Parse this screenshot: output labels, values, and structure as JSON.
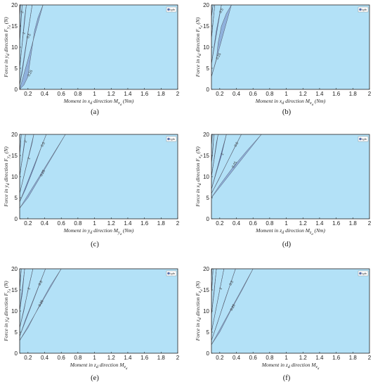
{
  "colors": {
    "background_fill": "#b3e1f7",
    "levels": [
      "#8fb1dc",
      "#6d8fd2",
      "#4f6bc7",
      "#3147a6",
      "#2d8fd6",
      "#52c6d6",
      "#9ee08a",
      "#e9e04a",
      "#f2a23a",
      "#d9362b"
    ]
  },
  "chart_data": [
    {
      "type": "contour",
      "panel": "a",
      "caption": "(a)",
      "xlabel": "Moment in x_d direction M_x_d (Nm)",
      "ylabel": "Force in y_d direction F_y_d (N)",
      "xlim": [
        0.1,
        2
      ],
      "ylim": [
        0,
        20
      ],
      "xticks": [
        0.2,
        0.4,
        0.6,
        0.8,
        1,
        1.2,
        1.4,
        1.6,
        1.8,
        2
      ],
      "yticks": [
        0,
        5,
        10,
        15,
        20
      ],
      "legend": "lgfb",
      "contour_levels": [
        0.25,
        0.5,
        1,
        2
      ],
      "contour_labels": [
        "0.25",
        "0.5",
        "1",
        "2"
      ],
      "boundaries": [
        {
          "level": 0.25,
          "points": [
            [
              0.1,
              0
            ],
            [
              0.15,
              1
            ],
            [
              0.2,
              3
            ],
            [
              0.22,
              6
            ],
            [
              0.25,
              10
            ],
            [
              0.28,
              14
            ],
            [
              0.32,
              17
            ],
            [
              0.38,
              20
            ]
          ]
        },
        {
          "level": 0.5,
          "points": [
            [
              0.1,
              1
            ],
            [
              0.13,
              4
            ],
            [
              0.16,
              8
            ],
            [
              0.19,
              12
            ],
            [
              0.22,
              16
            ],
            [
              0.25,
              20
            ]
          ]
        },
        {
          "level": 1,
          "points": [
            [
              0.1,
              5
            ],
            [
              0.12,
              9
            ],
            [
              0.14,
              13
            ],
            [
              0.16,
              17
            ],
            [
              0.18,
              20
            ]
          ]
        },
        {
          "level": 2,
          "points": [
            [
              0.1,
              11
            ],
            [
              0.11,
              15
            ],
            [
              0.12,
              18
            ],
            [
              0.13,
              20
            ]
          ]
        },
        {
          "level": 4,
          "points": [
            [
              0.1,
              17
            ],
            [
              0.105,
              19
            ],
            [
              0.11,
              20
            ]
          ]
        }
      ]
    },
    {
      "type": "contour",
      "panel": "b",
      "caption": "(b)",
      "xlabel": "Moment in x_d direction M_x_d (Nm)",
      "ylabel": "Force in z_d direction F_z_d (N)",
      "xlim": [
        0.1,
        2
      ],
      "ylim": [
        0,
        20
      ],
      "xticks": [
        0.2,
        0.4,
        0.6,
        0.8,
        1,
        1.2,
        1.4,
        1.6,
        1.8,
        2
      ],
      "yticks": [
        0,
        5,
        10,
        15,
        20
      ],
      "legend": "lgfb",
      "contour_levels": [
        0.25,
        0.5
      ],
      "contour_labels": [
        "0.25",
        "0.5"
      ],
      "boundaries": [
        {
          "level": 0.25,
          "points": [
            [
              0.1,
              3
            ],
            [
              0.13,
              5
            ],
            [
              0.16,
              7
            ],
            [
              0.18,
              11
            ],
            [
              0.22,
              15
            ],
            [
              0.28,
              18
            ],
            [
              0.34,
              20
            ]
          ]
        },
        {
          "level": 0.5,
          "points": [
            [
              0.1,
              6
            ],
            [
              0.13,
              10
            ],
            [
              0.16,
              14
            ],
            [
              0.2,
              18
            ],
            [
              0.22,
              20
            ]
          ]
        },
        {
          "level": 1,
          "points": [
            [
              0.1,
              12
            ],
            [
              0.12,
              16
            ],
            [
              0.14,
              20
            ]
          ]
        },
        {
          "level": 2,
          "points": [
            [
              0.1,
              17
            ],
            [
              0.11,
              19
            ],
            [
              0.12,
              20
            ]
          ]
        }
      ]
    },
    {
      "type": "contour",
      "panel": "c",
      "caption": "(c)",
      "xlabel": "Moment in y_d direction M_y_d (Nm)",
      "ylabel": "Force in y_d direction F_y_d (N)",
      "xlim": [
        0.1,
        2
      ],
      "ylim": [
        0,
        20
      ],
      "xticks": [
        0.2,
        0.4,
        0.6,
        0.8,
        1,
        1.2,
        1.4,
        1.6,
        1.8,
        2
      ],
      "yticks": [
        0,
        5,
        10,
        15,
        20
      ],
      "legend": "lgfb",
      "contour_levels": [
        0.25,
        0.5,
        1,
        2
      ],
      "contour_labels": [
        "0.25",
        "0.5",
        "1",
        "2"
      ],
      "boundaries": [
        {
          "level": 0.25,
          "points": [
            [
              0.1,
              2.5
            ],
            [
              0.2,
              5
            ],
            [
              0.35,
              10
            ],
            [
              0.5,
              15
            ],
            [
              0.65,
              20
            ]
          ]
        },
        {
          "level": 0.5,
          "points": [
            [
              0.1,
              4
            ],
            [
              0.17,
              7
            ],
            [
              0.27,
              12
            ],
            [
              0.36,
              17
            ],
            [
              0.42,
              20
            ]
          ]
        },
        {
          "level": 1,
          "points": [
            [
              0.1,
              6
            ],
            [
              0.15,
              10
            ],
            [
              0.2,
              14
            ],
            [
              0.25,
              18
            ],
            [
              0.27,
              20
            ]
          ]
        },
        {
          "level": 2,
          "points": [
            [
              0.1,
              10
            ],
            [
              0.13,
              14
            ],
            [
              0.16,
              18
            ],
            [
              0.17,
              20
            ]
          ]
        },
        {
          "level": 4,
          "points": [
            [
              0.1,
              15
            ],
            [
              0.11,
              18
            ],
            [
              0.12,
              20
            ]
          ]
        }
      ]
    },
    {
      "type": "contour",
      "panel": "d",
      "caption": "(d)",
      "xlabel": "Moment in z_d direction M_z_d (Nm)",
      "ylabel": "Force in x_d direction F_x_d (N)",
      "xlim": [
        0.1,
        2
      ],
      "ylim": [
        0,
        20
      ],
      "xticks": [
        0.2,
        0.4,
        0.6,
        0.8,
        1,
        1.2,
        1.4,
        1.6,
        1.8,
        2
      ],
      "yticks": [
        0,
        5,
        10,
        15,
        20
      ],
      "legend": "lgfb",
      "contour_levels": [
        0.25,
        0.5,
        1
      ],
      "contour_labels": [
        "0.25",
        "0.5",
        "1"
      ],
      "boundaries": [
        {
          "level": 0.25,
          "points": [
            [
              0.1,
              5
            ],
            [
              0.2,
              8
            ],
            [
              0.35,
              12
            ],
            [
              0.52,
              16
            ],
            [
              0.7,
              20
            ]
          ]
        },
        {
          "level": 0.5,
          "points": [
            [
              0.1,
              6
            ],
            [
              0.18,
              9
            ],
            [
              0.28,
              13
            ],
            [
              0.38,
              17
            ],
            [
              0.46,
              20
            ]
          ]
        },
        {
          "level": 1,
          "points": [
            [
              0.1,
              7
            ],
            [
              0.16,
              11
            ],
            [
              0.22,
              15
            ],
            [
              0.28,
              20
            ]
          ]
        },
        {
          "level": 2,
          "points": [
            [
              0.1,
              10
            ],
            [
              0.13,
              14
            ],
            [
              0.16,
              18
            ],
            [
              0.18,
              20
            ]
          ]
        },
        {
          "level": 4,
          "points": [
            [
              0.1,
              13
            ],
            [
              0.12,
              17
            ],
            [
              0.13,
              20
            ]
          ]
        },
        {
          "level": 8,
          "points": [
            [
              0.1,
              17
            ],
            [
              0.11,
              20
            ]
          ]
        }
      ]
    },
    {
      "type": "contour",
      "panel": "e",
      "caption": "(e)",
      "xlabel": "Moment in z_d direction M_z_d",
      "ylabel": "Force in y_d direction F_y_d (N)",
      "xlim": [
        0.1,
        2
      ],
      "ylim": [
        0,
        20
      ],
      "xticks": [
        0.2,
        0.4,
        0.6,
        0.8,
        1,
        1.2,
        1.4,
        1.6,
        1.8,
        2
      ],
      "yticks": [
        0,
        5,
        10,
        15,
        20
      ],
      "legend": "lgfb",
      "contour_levels": [
        0.25,
        0.5,
        1
      ],
      "contour_labels": [
        "0.25",
        "0.5",
        "1"
      ],
      "boundaries": [
        {
          "level": 0.25,
          "points": [
            [
              0.1,
              3
            ],
            [
              0.2,
              6
            ],
            [
              0.33,
              11
            ],
            [
              0.47,
              16
            ],
            [
              0.6,
              20
            ]
          ]
        },
        {
          "level": 0.5,
          "points": [
            [
              0.1,
              4
            ],
            [
              0.17,
              8
            ],
            [
              0.25,
              12
            ],
            [
              0.33,
              16
            ],
            [
              0.41,
              20
            ]
          ]
        },
        {
          "level": 1,
          "points": [
            [
              0.1,
              6
            ],
            [
              0.15,
              10
            ],
            [
              0.2,
              15
            ],
            [
              0.26,
              20
            ]
          ]
        },
        {
          "level": 2,
          "points": [
            [
              0.1,
              10
            ],
            [
              0.13,
              14
            ],
            [
              0.16,
              20
            ]
          ]
        },
        {
          "level": 4,
          "points": [
            [
              0.1,
              15
            ],
            [
              0.11,
              18
            ],
            [
              0.12,
              20
            ]
          ]
        }
      ]
    },
    {
      "type": "contour",
      "panel": "f",
      "caption": "(f)",
      "xlabel": "Moment in z_d direction M_z_d",
      "ylabel": "Force in z_d direction F_z_d (N)",
      "xlim": [
        0.1,
        2
      ],
      "ylim": [
        0,
        20
      ],
      "xticks": [
        0.2,
        0.4,
        0.6,
        0.8,
        1,
        1.2,
        1.4,
        1.6,
        1.8,
        2
      ],
      "yticks": [
        0,
        5,
        10,
        15,
        20
      ],
      "legend": "lgfb",
      "contour_levels": [
        0.25,
        0.5,
        1
      ],
      "contour_labels": [
        "0.25",
        "0.5",
        "1"
      ],
      "boundaries": [
        {
          "level": 0.25,
          "points": [
            [
              0.1,
              2
            ],
            [
              0.2,
              5
            ],
            [
              0.33,
              10
            ],
            [
              0.47,
              15
            ],
            [
              0.6,
              20
            ]
          ]
        },
        {
          "level": 0.5,
          "points": [
            [
              0.1,
              3
            ],
            [
              0.17,
              7
            ],
            [
              0.25,
              12
            ],
            [
              0.32,
              16
            ],
            [
              0.39,
              20
            ]
          ]
        },
        {
          "level": 1,
          "points": [
            [
              0.1,
              5
            ],
            [
              0.15,
              10
            ],
            [
              0.2,
              15
            ],
            [
              0.25,
              20
            ]
          ]
        },
        {
          "level": 2,
          "points": [
            [
              0.1,
              9
            ],
            [
              0.13,
              14
            ],
            [
              0.16,
              20
            ]
          ]
        },
        {
          "level": 4,
          "points": [
            [
              0.1,
              14
            ],
            [
              0.11,
              17
            ],
            [
              0.12,
              20
            ]
          ]
        },
        {
          "level": 8,
          "points": [
            [
              0.1,
              17
            ],
            [
              0.105,
              20
            ]
          ]
        }
      ]
    }
  ]
}
